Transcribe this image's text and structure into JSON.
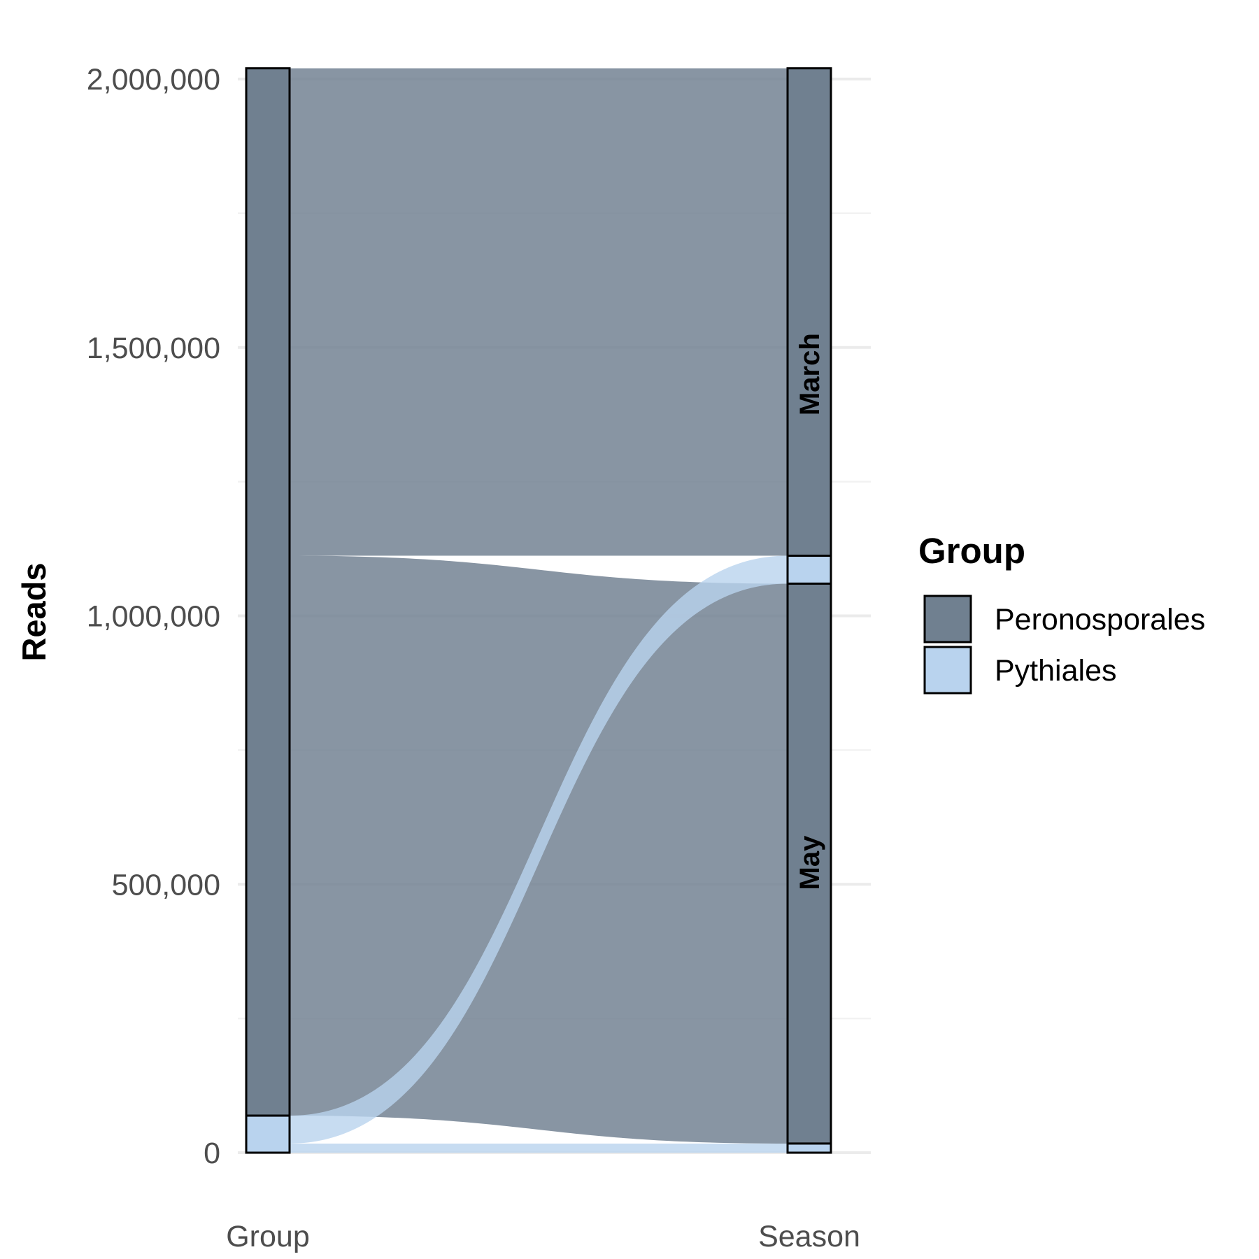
{
  "chart_data": {
    "type": "alluvial",
    "title": "",
    "ylabel": "Reads",
    "xlabel": "",
    "ylim": [
      0,
      2020000
    ],
    "y_ticks": [
      0,
      500000,
      1000000,
      1500000,
      2000000
    ],
    "y_tick_labels": [
      "0",
      "500,000",
      "1,000,000",
      "1,500,000",
      "2,000,000"
    ],
    "grid": true,
    "axes": [
      "Group",
      "Season"
    ],
    "colors": {
      "Peronosporales": "#708090",
      "Pythiales": "#b9d3ee"
    },
    "strata": {
      "Group": [
        {
          "label": "",
          "group": "Peronosporales",
          "value": 1951000
        },
        {
          "label": "",
          "group": "Pythiales",
          "value": 69000
        }
      ],
      "Season": [
        {
          "label": "March",
          "group": "Peronosporales",
          "value": 908000
        },
        {
          "label": "March",
          "group": "Pythiales",
          "value": 52000
        },
        {
          "label": "May",
          "group": "Peronosporales",
          "value": 1043000
        },
        {
          "label": "May",
          "group": "Pythiales",
          "value": 17000
        }
      ]
    },
    "stratum_labels": [
      {
        "axis": "Season",
        "label": "March",
        "range": [
          1060000,
          2020000
        ]
      },
      {
        "axis": "Season",
        "label": "May",
        "range": [
          0,
          1060000
        ]
      }
    ],
    "flows": [
      {
        "group": "Peronosporales",
        "from": "Group",
        "to": "March",
        "value": 908000
      },
      {
        "group": "Peronosporales",
        "from": "Group",
        "to": "May",
        "value": 1043000
      },
      {
        "group": "Pythiales",
        "from": "Group",
        "to": "March",
        "value": 52000
      },
      {
        "group": "Pythiales",
        "from": "Group",
        "to": "May",
        "value": 17000
      }
    ],
    "legend": {
      "title": "Group",
      "position": "right",
      "entries": [
        "Peronosporales",
        "Pythiales"
      ]
    }
  }
}
